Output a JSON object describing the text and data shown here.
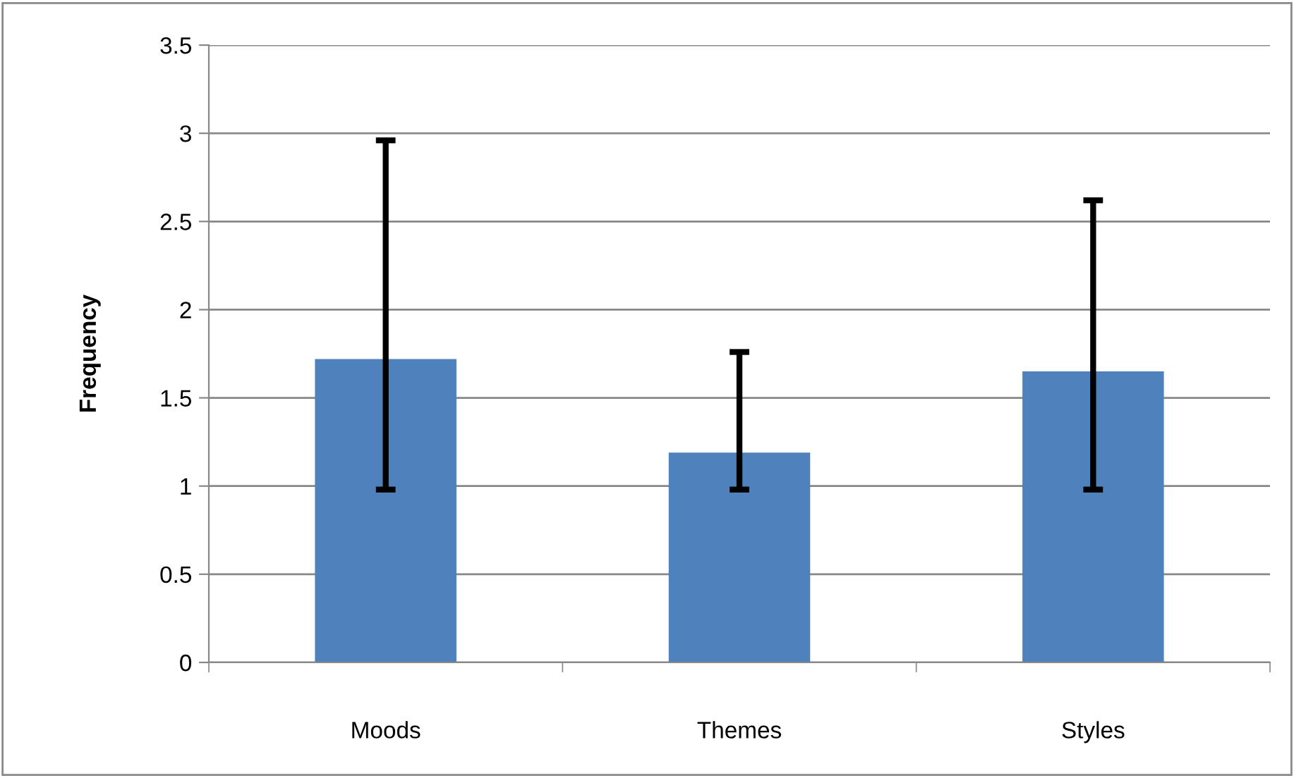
{
  "chart_data": {
    "type": "bar",
    "ylabel": "Frequency",
    "categories": [
      "Moods",
      "Themes",
      "Styles"
    ],
    "values": [
      1.72,
      1.19,
      1.65
    ],
    "errors": [
      [
        0.98,
        2.96
      ],
      [
        0.98,
        1.76
      ],
      [
        0.98,
        2.62
      ]
    ],
    "color": "#4f81bd",
    "ylim": [
      0,
      3.5
    ],
    "yticks": [
      0,
      0.5,
      1,
      1.5,
      2,
      2.5,
      3,
      3.5
    ],
    "grid": "y",
    "legend": false
  }
}
